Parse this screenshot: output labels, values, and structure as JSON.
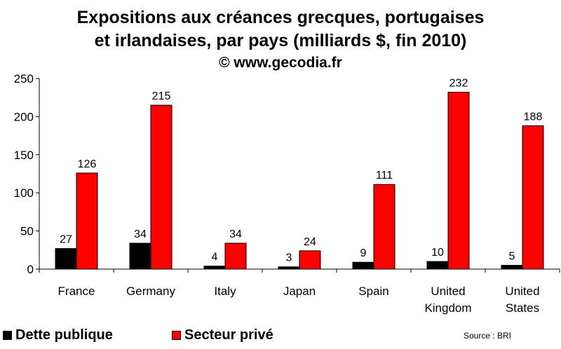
{
  "chart_data": {
    "type": "bar",
    "title": "Expositions aux créances grecques, portugaises",
    "title_line2": "et irlandaises, par pays (milliards $, fin 2010)",
    "subtitle": "© www.gecodia.fr",
    "categories": [
      [
        "France"
      ],
      [
        "Germany"
      ],
      [
        "Italy"
      ],
      [
        "Japan"
      ],
      [
        "Spain"
      ],
      [
        "United",
        "Kingdom"
      ],
      [
        "United",
        "States"
      ]
    ],
    "series": [
      {
        "name": "Dette publique",
        "color": "#000000",
        "values": [
          27,
          34,
          4,
          3,
          9,
          10,
          5
        ]
      },
      {
        "name": "Secteur privé",
        "color": "#ff0000",
        "values": [
          126,
          215,
          34,
          24,
          111,
          232,
          188
        ]
      }
    ],
    "ylim": [
      0,
      250
    ],
    "yticks": [
      0,
      50,
      100,
      150,
      200,
      250
    ],
    "grid": false,
    "legend_position": "bottom-left",
    "source": "Source : BRI"
  }
}
